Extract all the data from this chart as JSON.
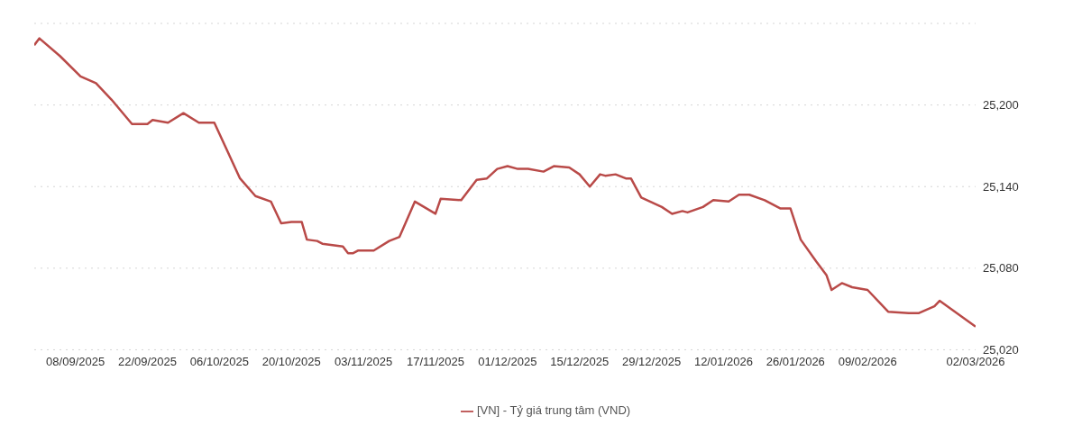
{
  "chart_data": {
    "type": "line",
    "x": [
      "2025-08-31",
      "2025-09-01",
      "2025-09-05",
      "2025-09-09",
      "2025-09-12",
      "2025-09-15",
      "2025-09-19",
      "2025-09-22",
      "2025-09-23",
      "2025-09-26",
      "2025-09-29",
      "2025-10-02",
      "2025-10-05",
      "2025-10-10",
      "2025-10-13",
      "2025-10-16",
      "2025-10-18",
      "2025-10-20",
      "2025-10-22",
      "2025-10-23",
      "2025-10-25",
      "2025-10-26",
      "2025-10-30",
      "2025-10-31",
      "2025-11-01",
      "2025-11-02",
      "2025-11-05",
      "2025-11-08",
      "2025-11-10",
      "2025-11-13",
      "2025-11-17",
      "2025-11-18",
      "2025-11-22",
      "2025-11-25",
      "2025-11-27",
      "2025-11-29",
      "2025-12-01",
      "2025-12-03",
      "2025-12-05",
      "2025-12-08",
      "2025-12-10",
      "2025-12-13",
      "2025-12-15",
      "2025-12-17",
      "2025-12-19",
      "2025-12-20",
      "2025-12-22",
      "2025-12-24",
      "2025-12-25",
      "2025-12-27",
      "2025-12-31",
      "2026-01-02",
      "2026-01-04",
      "2026-01-05",
      "2026-01-08",
      "2026-01-10",
      "2026-01-13",
      "2026-01-15",
      "2026-01-17",
      "2026-01-20",
      "2026-01-23",
      "2026-01-25",
      "2026-01-27",
      "2026-01-30",
      "2026-02-01",
      "2026-02-02",
      "2026-02-04",
      "2026-02-06",
      "2026-02-09",
      "2026-02-13",
      "2026-02-17",
      "2026-02-19",
      "2026-02-22",
      "2026-02-23",
      "2026-03-02"
    ],
    "series": [
      {
        "name": "[VN] - Tỷ giá trung tâm (VND)",
        "color": "#b94a48",
        "values": [
          25244,
          25249,
          25236,
          25221,
          25216,
          25204,
          25186,
          25186,
          25189,
          25187,
          25194,
          25187,
          25187,
          25146,
          25133,
          25129,
          25113,
          25114,
          25114,
          25101,
          25100,
          25098,
          25096,
          25091,
          25091,
          25093,
          25093,
          25100,
          25103,
          25129,
          25120,
          25131,
          25130,
          25145,
          25146,
          25153,
          25155,
          25153,
          25153,
          25151,
          25155,
          25154,
          25149,
          25140,
          25149,
          25148,
          25149,
          25146,
          25146,
          25132,
          25125,
          25120,
          25122,
          25121,
          25125,
          25130,
          25129,
          25134,
          25134,
          25130,
          25124,
          25124,
          25101,
          25085,
          25075,
          25064,
          25069,
          25066,
          25064,
          25048,
          25047,
          25047,
          25052,
          25056,
          25037
        ]
      }
    ],
    "xlim": [
      "2025-08-31",
      "2026-03-02"
    ],
    "xticks": [
      {
        "value": "2025-09-08",
        "label": "08/09/2025"
      },
      {
        "value": "2025-09-22",
        "label": "22/09/2025"
      },
      {
        "value": "2025-10-06",
        "label": "06/10/2025"
      },
      {
        "value": "2025-10-20",
        "label": "20/10/2025"
      },
      {
        "value": "2025-11-03",
        "label": "03/11/2025"
      },
      {
        "value": "2025-11-17",
        "label": "17/11/2025"
      },
      {
        "value": "2025-12-01",
        "label": "01/12/2025"
      },
      {
        "value": "2025-12-15",
        "label": "15/12/2025"
      },
      {
        "value": "2025-12-29",
        "label": "29/12/2025"
      },
      {
        "value": "2026-01-12",
        "label": "12/01/2026"
      },
      {
        "value": "2026-01-26",
        "label": "26/01/2026"
      },
      {
        "value": "2026-02-09",
        "label": "09/02/2026"
      },
      {
        "value": "2026-03-02",
        "label": "02/03/2026"
      }
    ],
    "ylim": [
      25020,
      25260
    ],
    "yticks": [
      {
        "value": 25020,
        "label": "25,020"
      },
      {
        "value": 25080,
        "label": "25,080"
      },
      {
        "value": 25140,
        "label": "25,140"
      },
      {
        "value": 25200,
        "label": "25,200"
      },
      {
        "value": 25260,
        "label": null
      }
    ],
    "grid": "y",
    "legend": "bottom",
    "marker": "none",
    "line_style": "solid"
  }
}
